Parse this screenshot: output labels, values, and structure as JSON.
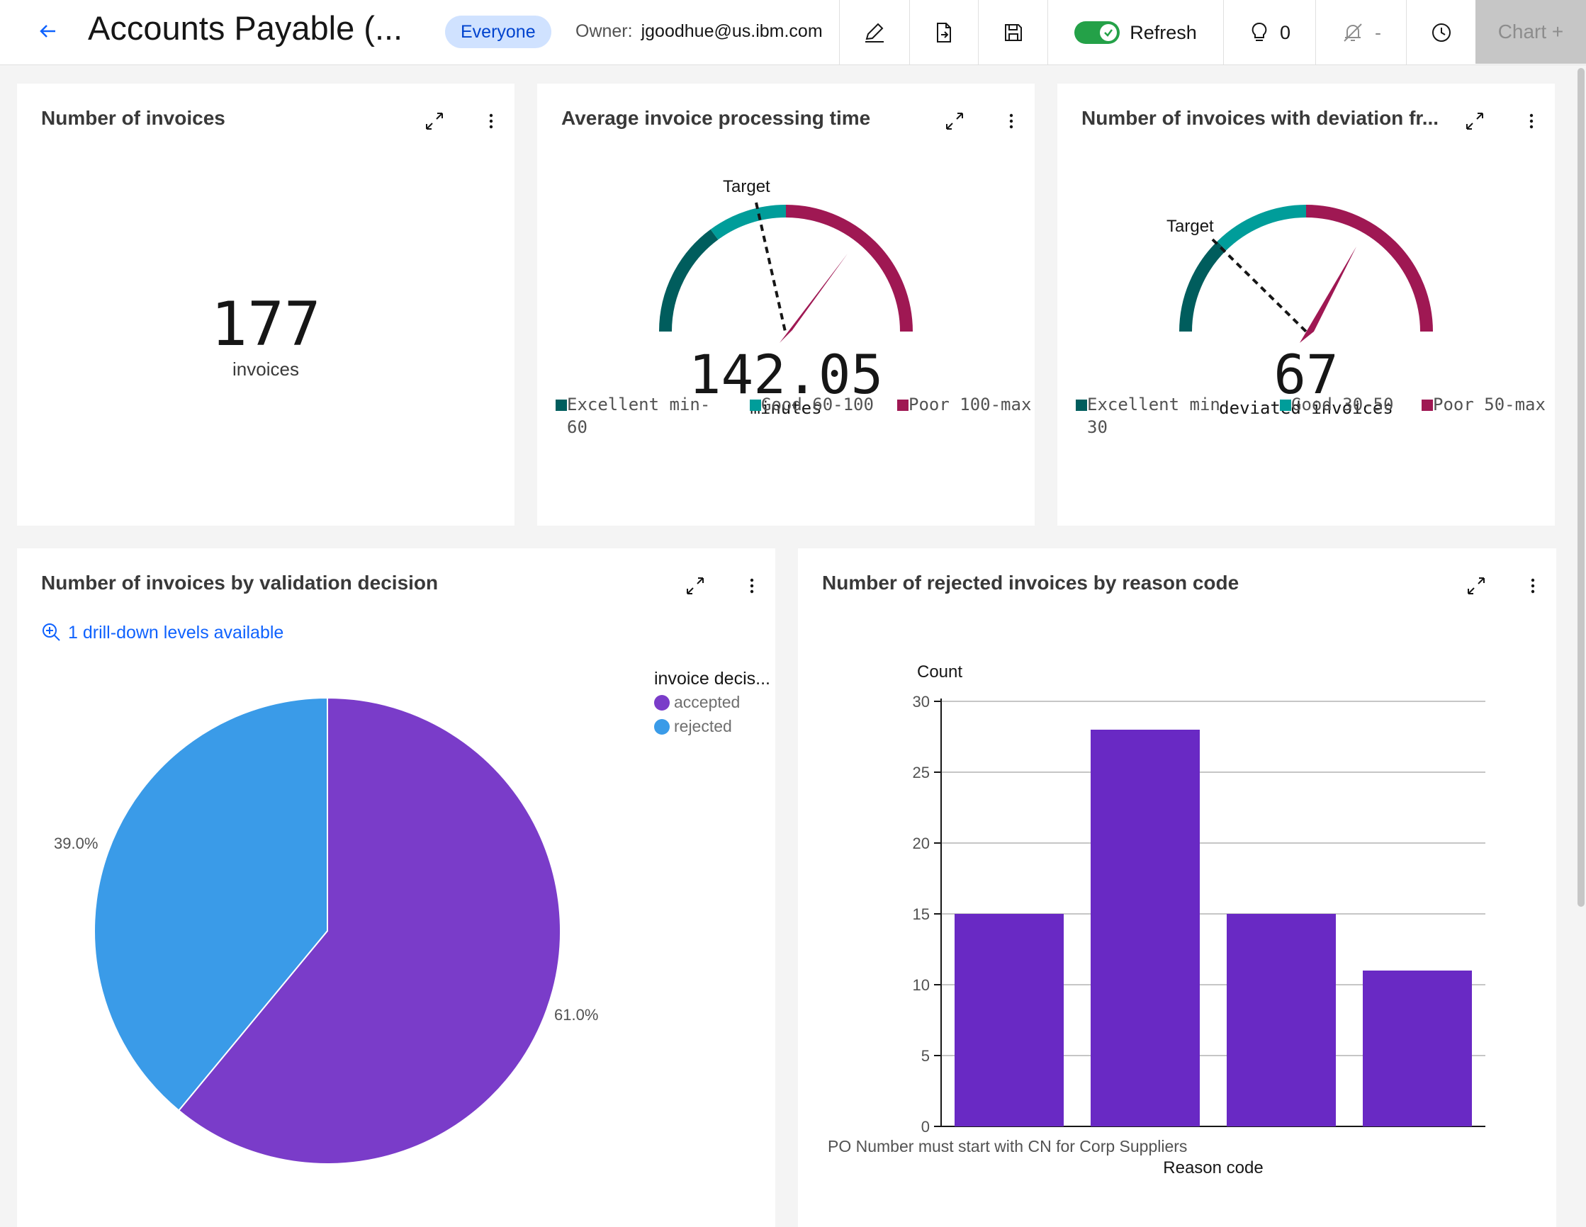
{
  "header": {
    "title": "Accounts Payable (...",
    "share_tag": "Everyone",
    "owner_label": "Owner:",
    "owner_value": "jgoodhue@us.ibm.com",
    "refresh_label": "Refresh",
    "insights_count": "0",
    "alerts_value": "-",
    "chart_add_label": "Chart +"
  },
  "cards": {
    "kpi": {
      "title": "Number of invoices",
      "value": "177",
      "label": "invoices"
    },
    "gauge1": {
      "title": "Average invoice processing time",
      "value": "142.05",
      "unit": "minutes",
      "target_label": "Target",
      "legend": [
        {
          "label": "Excellent min-60",
          "color": "#005d5d"
        },
        {
          "label": "Good 60-100",
          "color": "#009d9a"
        },
        {
          "label": "Poor 100-max",
          "color": "#9f1853"
        }
      ]
    },
    "gauge2": {
      "title": "Number of invoices with deviation fr...",
      "value": "67",
      "unit": "deviated invoices",
      "target_label": "Target",
      "legend": [
        {
          "label": "Excellent min-30",
          "color": "#005d5d"
        },
        {
          "label": "Good 30-50",
          "color": "#009d9a"
        },
        {
          "label": "Poor 50-max",
          "color": "#9f1853"
        }
      ]
    },
    "pie": {
      "title": "Number of invoices by validation decision",
      "drill_label": "1 drill-down levels available",
      "legend_title": "invoice decis...",
      "rejected_pct_label": "39.0%",
      "accepted_pct_label": "61.0%"
    },
    "bar": {
      "title": "Number of rejected invoices by reason code"
    }
  },
  "chart_data": [
    {
      "type": "gauge",
      "value": 142.05,
      "unit": "minutes",
      "bands": [
        {
          "label": "Excellent",
          "from": "min",
          "to": 60,
          "color": "#005d5d"
        },
        {
          "label": "Good",
          "from": 60,
          "to": 100,
          "color": "#009d9a"
        },
        {
          "label": "Poor",
          "from": 100,
          "to": "max",
          "color": "#9f1853"
        }
      ]
    },
    {
      "type": "gauge",
      "value": 67,
      "unit": "deviated invoices",
      "bands": [
        {
          "label": "Excellent",
          "from": "min",
          "to": 30,
          "color": "#005d5d"
        },
        {
          "label": "Good",
          "from": 30,
          "to": 50,
          "color": "#009d9a"
        },
        {
          "label": "Poor",
          "from": 50,
          "to": "max",
          "color": "#9f1853"
        }
      ]
    },
    {
      "type": "pie",
      "legend_title": "invoice decis...",
      "slices": [
        {
          "label": "accepted",
          "value": 61.0,
          "color": "#7a3cc9"
        },
        {
          "label": "rejected",
          "value": 39.0,
          "color": "#3a9be8"
        }
      ]
    },
    {
      "type": "bar",
      "xlabel": "Reason code",
      "ylabel": "Count",
      "ylim": [
        0,
        30
      ],
      "yticks": [
        0,
        5,
        10,
        15,
        20,
        25,
        30
      ],
      "grid": true,
      "categories": [
        "PO Number must start with CN for Corp Suppliers",
        "",
        "",
        ""
      ],
      "values": [
        15,
        28,
        15,
        11
      ],
      "color": "#6929c4"
    }
  ]
}
